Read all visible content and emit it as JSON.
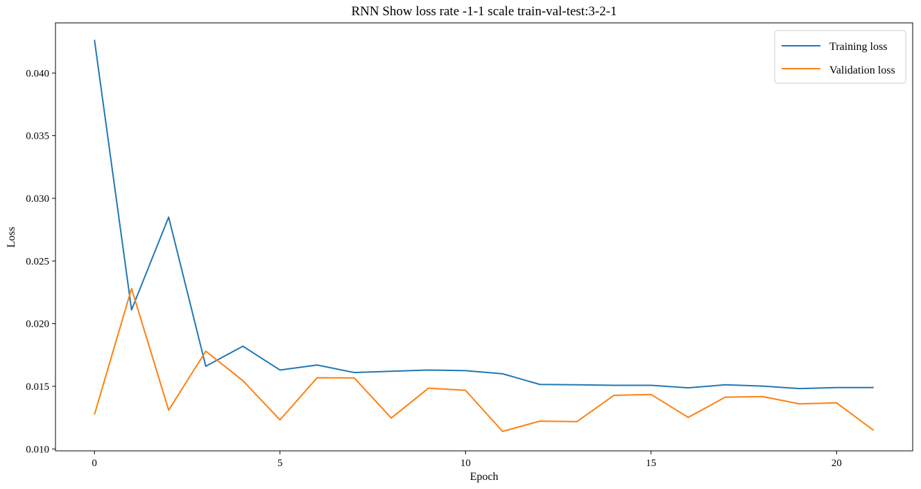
{
  "chart_data": {
    "type": "line",
    "title": "RNN Show loss rate -1-1 scale train-val-test:3-2-1",
    "xlabel": "Epoch",
    "ylabel": "Loss",
    "xlim": [
      -1.05,
      22.05
    ],
    "ylim": [
      0.00985,
      0.044
    ],
    "xticks": [
      0,
      5,
      10,
      15,
      20
    ],
    "xtick_labels": [
      "0",
      "5",
      "10",
      "15",
      "20"
    ],
    "yticks": [
      0.01,
      0.015,
      0.02,
      0.025,
      0.03,
      0.035,
      0.04
    ],
    "ytick_labels": [
      "0.010",
      "0.015",
      "0.020",
      "0.025",
      "0.030",
      "0.035",
      "0.040"
    ],
    "grid": false,
    "legend": "top-right",
    "x": [
      0,
      1,
      2,
      3,
      4,
      5,
      6,
      7,
      8,
      9,
      10,
      11,
      12,
      13,
      14,
      15,
      16,
      17,
      18,
      19,
      20,
      21
    ],
    "series": [
      {
        "name": "Training loss",
        "color": "#1f77b4",
        "values": [
          0.04265,
          0.0211,
          0.0285,
          0.0166,
          0.0182,
          0.0163,
          0.0167,
          0.0161,
          0.0162,
          0.0163,
          0.01625,
          0.016,
          0.01515,
          0.01512,
          0.01508,
          0.01508,
          0.01488,
          0.01512,
          0.01502,
          0.01482,
          0.0149,
          0.0149
        ]
      },
      {
        "name": "Validation loss",
        "color": "#ff7f0e",
        "values": [
          0.01275,
          0.0228,
          0.0131,
          0.0178,
          0.01545,
          0.01232,
          0.01568,
          0.01567,
          0.01247,
          0.01485,
          0.01468,
          0.0114,
          0.01222,
          0.01218,
          0.01428,
          0.01435,
          0.01252,
          0.01413,
          0.01418,
          0.0136,
          0.01368,
          0.01148
        ]
      }
    ]
  }
}
